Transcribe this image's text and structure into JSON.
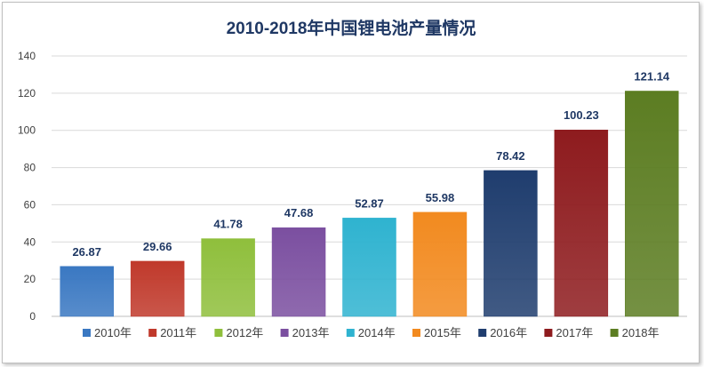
{
  "chart_data": {
    "type": "bar",
    "title": "2010-2018年中国锂电池产量情况",
    "xlabel": "",
    "ylabel": "",
    "categories": [
      "2010年",
      "2011年",
      "2012年",
      "2013年",
      "2014年",
      "2015年",
      "2016年",
      "2017年",
      "2018年"
    ],
    "values": [
      26.87,
      29.66,
      41.78,
      47.68,
      52.87,
      55.98,
      78.42,
      100.23,
      121.14
    ],
    "value_labels": [
      "26.87",
      "29.66",
      "41.78",
      "47.68",
      "52.87",
      "55.98",
      "78.42",
      "100.23",
      "121.14"
    ],
    "ylim": [
      0,
      140
    ],
    "yticks": [
      0,
      20,
      40,
      60,
      80,
      100,
      120,
      140
    ],
    "ytick_labels": [
      "0",
      "20",
      "40",
      "60",
      "80",
      "100",
      "120",
      "140"
    ],
    "grid": true,
    "legend_position": "bottom",
    "colors": [
      "#3a78c2",
      "#c0392b",
      "#8fbf3c",
      "#7b4fa0",
      "#2fb3d0",
      "#f28a1f",
      "#1f3d6e",
      "#8e1b1e",
      "#5c7d22"
    ],
    "title_color": "#1f3864",
    "label_color": "#1f3864",
    "axis_text_color": "#404040"
  }
}
